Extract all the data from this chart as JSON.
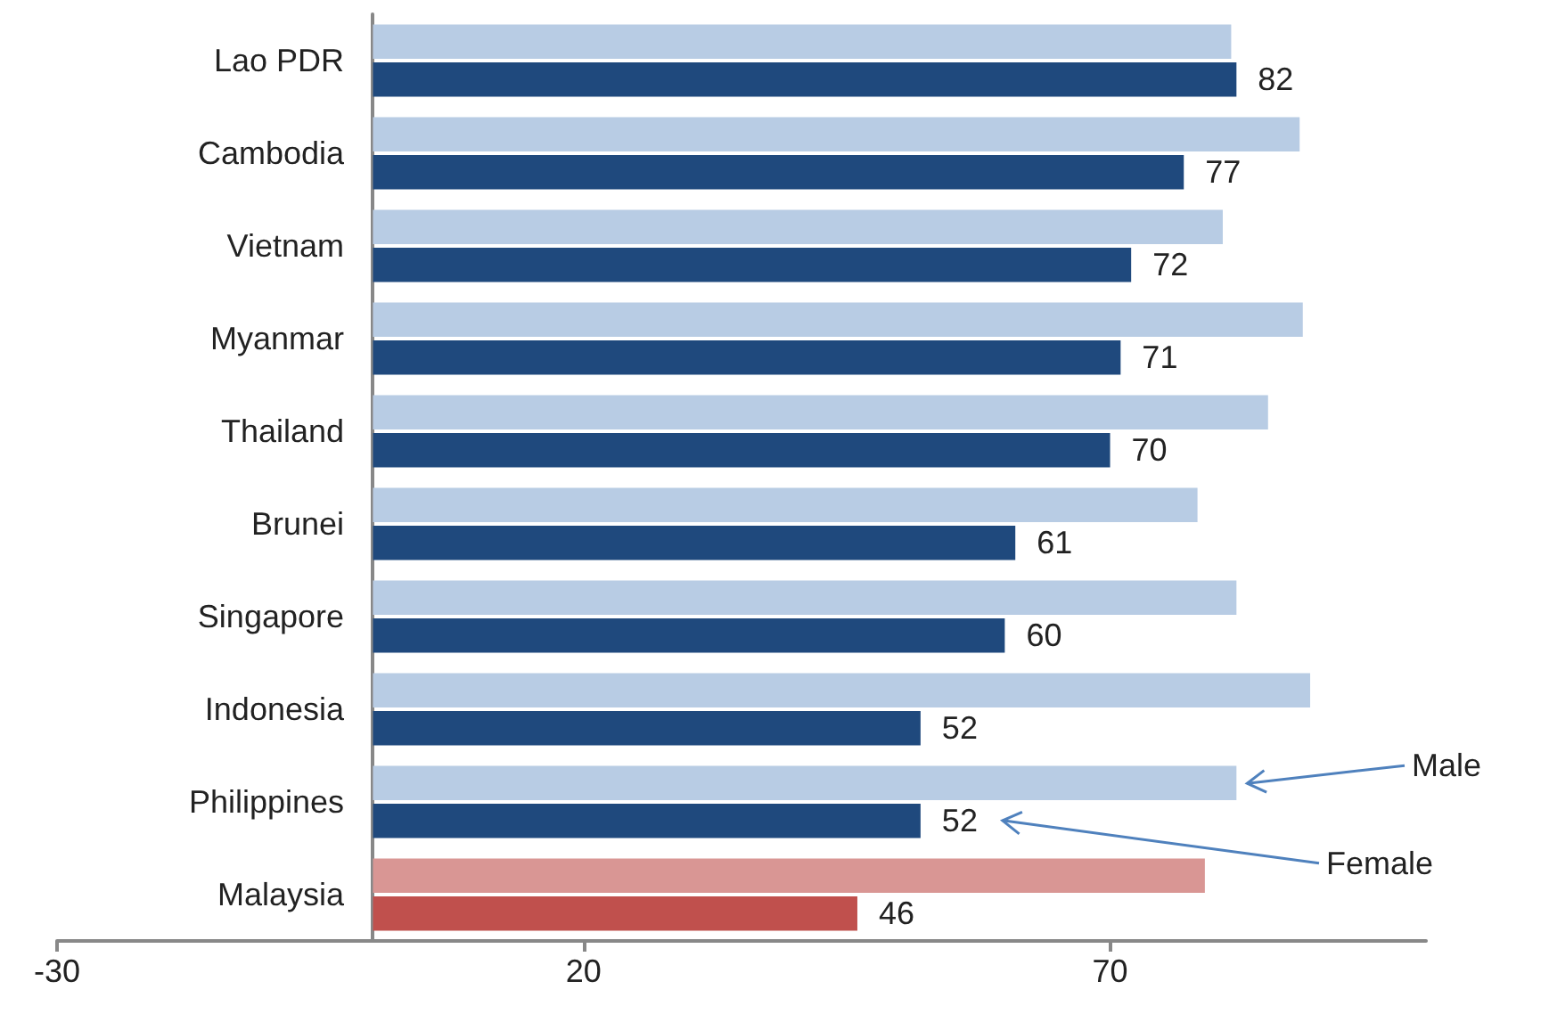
{
  "chart_data": {
    "type": "bar",
    "orientation": "horizontal",
    "categories": [
      "Lao PDR",
      "Cambodia",
      "Vietnam",
      "Myanmar",
      "Thailand",
      "Brunei",
      "Singapore",
      "Indonesia",
      "Philippines",
      "Malaysia"
    ],
    "series": [
      {
        "name": "Male",
        "color": "#b8cce4",
        "colors": [
          "#b8cce4",
          "#b8cce4",
          "#b8cce4",
          "#b8cce4",
          "#b8cce4",
          "#b8cce4",
          "#b8cce4",
          "#b8cce4",
          "#b8cce4",
          "#d99694"
        ],
        "values": [
          81.5,
          88,
          80.7,
          88.3,
          85,
          78.3,
          82,
          89,
          82,
          79
        ]
      },
      {
        "name": "Female",
        "color": "#1f497d",
        "colors": [
          "#1f497d",
          "#1f497d",
          "#1f497d",
          "#1f497d",
          "#1f497d",
          "#1f497d",
          "#1f497d",
          "#1f497d",
          "#1f497d",
          "#c0504d"
        ],
        "values": [
          82,
          77,
          72,
          71,
          70,
          61,
          60,
          52,
          52,
          46
        ],
        "value_labels": [
          "82",
          "77",
          "72",
          "71",
          "70",
          "61",
          "60",
          "52",
          "52",
          "46"
        ]
      }
    ],
    "xlim": [
      -30,
      100
    ],
    "xticks": [
      -30,
      20,
      70
    ],
    "grid": false
  }
}
